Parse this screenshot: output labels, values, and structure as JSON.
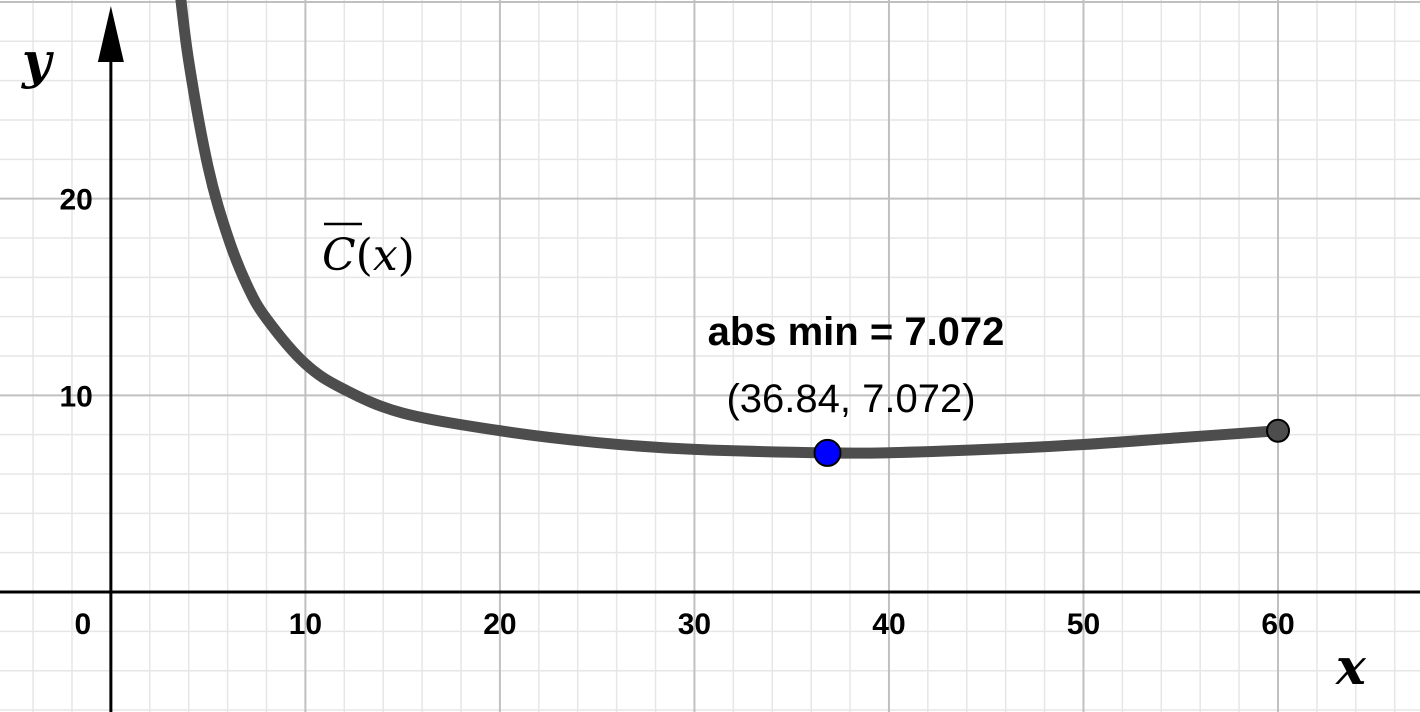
{
  "chart_data": {
    "type": "line",
    "title": "",
    "xlabel": "x",
    "ylabel": "y",
    "xlim": [
      -5.7,
      67.3
    ],
    "ylim": [
      -6.1,
      30.1
    ],
    "grid": true,
    "x_ticks": [
      0,
      10,
      20,
      30,
      40,
      50,
      60
    ],
    "x_tick_labels": [
      "0",
      "10",
      "20",
      "30",
      "40",
      "50",
      "60"
    ],
    "y_ticks": [
      10,
      20
    ],
    "y_tick_labels": [
      "10",
      "20"
    ],
    "series": [
      {
        "name": "C̄(x)",
        "color": "#4d4d4d",
        "x": [
          3.5,
          4,
          5,
          6,
          7,
          8,
          10,
          12,
          15,
          20,
          25,
          30,
          36.84,
          40,
          45,
          50,
          55,
          60
        ],
        "y": [
          31.0,
          27.0,
          21.6,
          18.1,
          15.6,
          13.9,
          11.6,
          10.3,
          9.1,
          8.2,
          7.6,
          7.25,
          7.072,
          7.08,
          7.25,
          7.5,
          7.85,
          8.2
        ]
      }
    ],
    "points": [
      {
        "x": 36.84,
        "y": 7.072,
        "color": "#0000ff",
        "title": "abs min = 7.072",
        "label": "(36.84, 7.072)"
      },
      {
        "x": 60,
        "y": 8.2,
        "color": "#4d4d4d"
      }
    ]
  }
}
